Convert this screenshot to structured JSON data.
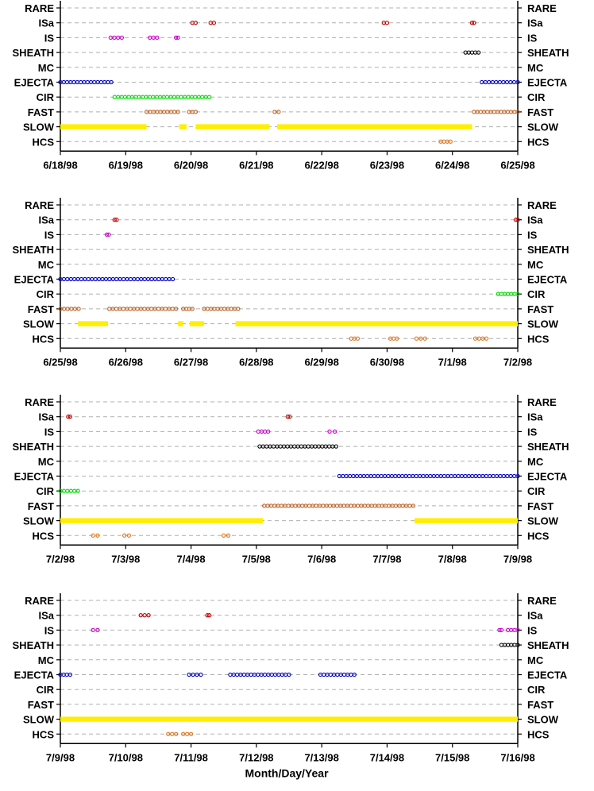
{
  "xlabel": "Month/Day/Year",
  "categories": [
    "RARE",
    "ISa",
    "IS",
    "SHEATH",
    "MC",
    "EJECTA",
    "CIR",
    "FAST",
    "SLOW",
    "HCS"
  ],
  "colors": {
    "ISa": "#c00000",
    "IS": "#cc00cc",
    "SHEATH": "#000000",
    "EJECTA": "#0000cc",
    "CIR": "#00dd00",
    "FAST": "#c06020",
    "SLOW": "#ffee00",
    "HCS": "#e07820",
    "grid": "#b0b0b0"
  },
  "chart_data": [
    {
      "type": "scatter",
      "xlabel": "",
      "ylabel": "",
      "xlim": [
        0,
        7
      ],
      "grid": true,
      "x_tick_labels": [
        "6/18/98",
        "6/19/98",
        "6/20/98",
        "6/21/98",
        "6/22/98",
        "6/23/98",
        "6/24/98",
        "6/25/98"
      ],
      "categories": [
        "RARE",
        "ISa",
        "IS",
        "SHEATH",
        "MC",
        "EJECTA",
        "CIR",
        "FAST",
        "SLOW",
        "HCS"
      ],
      "series": [
        {
          "category": "ISa",
          "intervals": [
            [
              2.02,
              2.07
            ],
            [
              2.3,
              2.35
            ],
            [
              4.95,
              5.0
            ],
            [
              6.3,
              6.33
            ]
          ]
        },
        {
          "category": "IS",
          "intervals": [
            [
              0.77,
              0.94
            ],
            [
              1.37,
              1.48
            ],
            [
              1.77,
              1.8
            ]
          ]
        },
        {
          "category": "SHEATH",
          "intervals": [
            [
              6.2,
              6.4
            ]
          ]
        },
        {
          "category": "EJECTA",
          "intervals": [
            [
              0.0,
              0.78
            ],
            [
              6.45,
              7.0
            ]
          ]
        },
        {
          "category": "CIR",
          "intervals": [
            [
              0.83,
              2.28
            ]
          ]
        },
        {
          "category": "FAST",
          "intervals": [
            [
              1.32,
              1.8
            ],
            [
              1.97,
              2.07
            ],
            [
              3.28,
              3.34
            ],
            [
              6.33,
              7.0
            ]
          ]
        },
        {
          "category": "SLOW",
          "intervals": [
            [
              0.0,
              1.32
            ],
            [
              1.82,
              1.93
            ],
            [
              2.07,
              3.2
            ],
            [
              3.32,
              6.3
            ]
          ]
        },
        {
          "category": "HCS",
          "intervals": [
            [
              5.82,
              5.97
            ]
          ]
        }
      ]
    },
    {
      "type": "scatter",
      "xlabel": "",
      "ylabel": "",
      "xlim": [
        0,
        7
      ],
      "grid": true,
      "x_tick_labels": [
        "6/25/98",
        "6/26/98",
        "6/27/98",
        "6/28/98",
        "6/29/98",
        "6/30/98",
        "7/1/98",
        "7/2/98"
      ],
      "categories": [
        "RARE",
        "ISa",
        "IS",
        "SHEATH",
        "MC",
        "EJECTA",
        "CIR",
        "FAST",
        "SLOW",
        "HCS"
      ],
      "series": [
        {
          "category": "ISa",
          "intervals": [
            [
              0.83,
              0.86
            ],
            [
              6.97,
              7.0
            ]
          ]
        },
        {
          "category": "IS",
          "intervals": [
            [
              0.71,
              0.74
            ]
          ]
        },
        {
          "category": "EJECTA",
          "intervals": [
            [
              0.0,
              1.72
            ]
          ]
        },
        {
          "category": "CIR",
          "intervals": [
            [
              6.7,
              7.0
            ]
          ]
        },
        {
          "category": "FAST",
          "intervals": [
            [
              0.0,
              0.28
            ],
            [
              0.75,
              1.77
            ],
            [
              1.88,
              2.02
            ],
            [
              2.2,
              2.72
            ]
          ]
        },
        {
          "category": "SLOW",
          "intervals": [
            [
              0.27,
              0.73
            ],
            [
              1.8,
              1.88
            ],
            [
              1.98,
              2.2
            ],
            [
              2.68,
              7.0
            ]
          ]
        },
        {
          "category": "HCS",
          "intervals": [
            [
              4.45,
              4.55
            ],
            [
              5.05,
              5.15
            ],
            [
              5.45,
              5.58
            ],
            [
              6.35,
              6.52
            ]
          ]
        }
      ]
    },
    {
      "type": "scatter",
      "xlabel": "",
      "ylabel": "",
      "xlim": [
        0,
        7
      ],
      "grid": true,
      "x_tick_labels": [
        "7/2/98",
        "7/3/98",
        "7/4/98",
        "7/5/98",
        "7/6/98",
        "7/7/98",
        "7/8/98",
        "7/9/98"
      ],
      "categories": [
        "RARE",
        "ISa",
        "IS",
        "SHEATH",
        "MC",
        "EJECTA",
        "CIR",
        "FAST",
        "SLOW",
        "HCS"
      ],
      "series": [
        {
          "category": "ISa",
          "intervals": [
            [
              0.12,
              0.15
            ],
            [
              3.48,
              3.51
            ]
          ]
        },
        {
          "category": "IS",
          "intervals": [
            [
              3.03,
              3.18
            ],
            [
              4.12,
              4.2
            ]
          ]
        },
        {
          "category": "SHEATH",
          "intervals": [
            [
              3.05,
              4.22
            ]
          ]
        },
        {
          "category": "EJECTA",
          "intervals": [
            [
              4.27,
              7.0
            ]
          ]
        },
        {
          "category": "CIR",
          "intervals": [
            [
              0.0,
              0.27
            ]
          ]
        },
        {
          "category": "FAST",
          "intervals": [
            [
              3.12,
              5.4
            ]
          ]
        },
        {
          "category": "SLOW",
          "intervals": [
            [
              0.0,
              3.1
            ],
            [
              5.42,
              7.0
            ]
          ]
        },
        {
          "category": "HCS",
          "intervals": [
            [
              0.5,
              0.57
            ],
            [
              0.98,
              1.05
            ],
            [
              2.5,
              2.57
            ]
          ]
        }
      ]
    },
    {
      "type": "scatter",
      "xlabel": "Month/Day/Year",
      "ylabel": "",
      "xlim": [
        0,
        7
      ],
      "grid": true,
      "x_tick_labels": [
        "7/9/98",
        "7/10/98",
        "7/11/98",
        "7/12/98",
        "7/13/98",
        "7/14/98",
        "7/15/98",
        "7/16/98"
      ],
      "categories": [
        "RARE",
        "ISa",
        "IS",
        "SHEATH",
        "MC",
        "EJECTA",
        "CIR",
        "FAST",
        "SLOW",
        "HCS"
      ],
      "series": [
        {
          "category": "ISa",
          "intervals": [
            [
              1.23,
              1.35
            ],
            [
              2.25,
              2.28
            ]
          ]
        },
        {
          "category": "IS",
          "intervals": [
            [
              0.5,
              0.57
            ],
            [
              6.72,
              6.75
            ],
            [
              6.85,
              7.0
            ]
          ]
        },
        {
          "category": "SHEATH",
          "intervals": [
            [
              6.75,
              7.0
            ]
          ]
        },
        {
          "category": "EJECTA",
          "intervals": [
            [
              0.0,
              0.15
            ],
            [
              1.97,
              2.15
            ],
            [
              2.6,
              3.5
            ],
            [
              3.98,
              4.5
            ]
          ]
        },
        {
          "category": "SLOW",
          "intervals": [
            [
              0.0,
              7.0
            ]
          ]
        },
        {
          "category": "HCS",
          "intervals": [
            [
              1.65,
              1.77
            ],
            [
              1.88,
              2.0
            ]
          ]
        }
      ]
    }
  ]
}
